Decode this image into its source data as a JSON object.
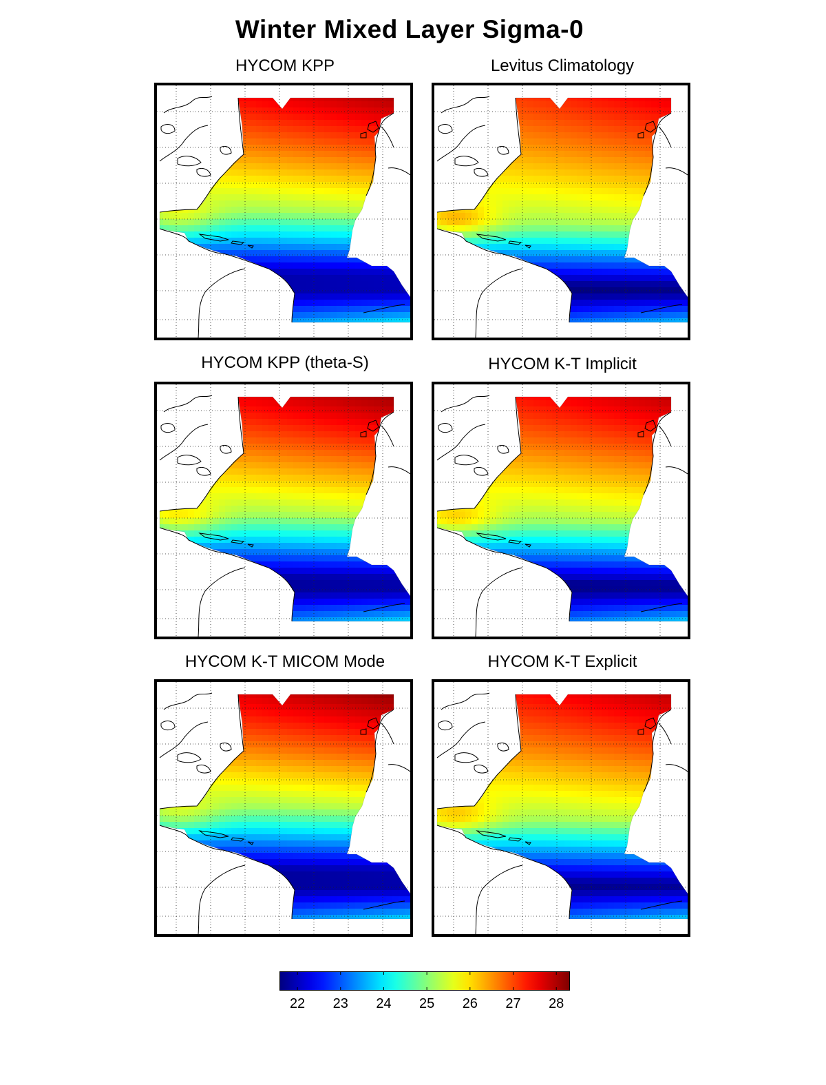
{
  "figure_title": "Winter Mixed Layer Sigma-0",
  "panels": [
    {
      "title": "HYCOM KPP"
    },
    {
      "title": "Levitus Climatology"
    },
    {
      "title": "HYCOM KPP (theta-S)"
    },
    {
      "title": "HYCOM K-T Implicit"
    },
    {
      "title": "HYCOM K-T MICOM Mode"
    },
    {
      "title": "HYCOM K-T Explicit"
    }
  ],
  "colorbar": {
    "min": 21.6,
    "max": 28.3,
    "ticks": [
      "22",
      "23",
      "24",
      "25",
      "26",
      "27",
      "28"
    ],
    "colormap": "jet"
  },
  "colors": {
    "low": "#00008f",
    "mid": "#ffff00",
    "high": "#8f0000",
    "land": "#ffffff",
    "coast": "#000000"
  }
}
